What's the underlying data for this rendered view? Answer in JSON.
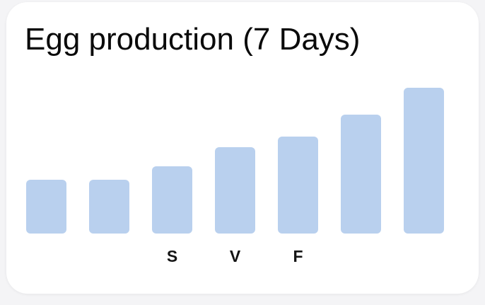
{
  "card": {
    "title": "Egg production (7 Days)"
  },
  "chart_data": {
    "type": "bar",
    "title": "Egg production (7 Days)",
    "categories": [
      "",
      "",
      "S",
      "V",
      "F",
      "",
      ""
    ],
    "values": [
      76,
      76,
      95,
      122,
      137,
      168,
      206
    ],
    "ylim": [
      0,
      206
    ],
    "bar_color": "#b9d0ee",
    "grid": false,
    "legend": "none"
  }
}
